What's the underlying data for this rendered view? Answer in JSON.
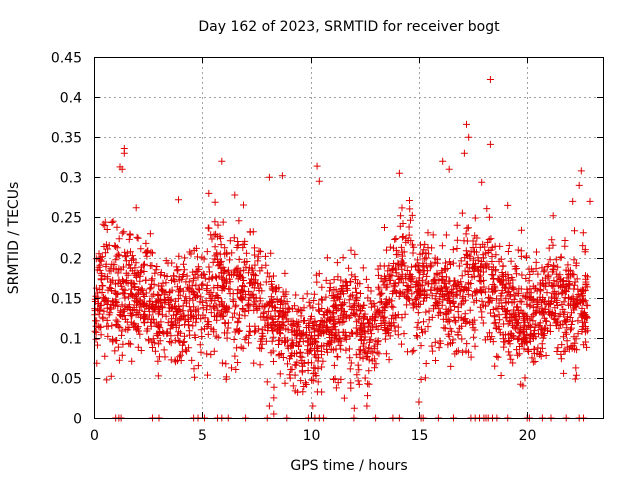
{
  "chart_data": {
    "type": "scatter",
    "title": "Day 162 of 2023, SRMTID for receiver bogt",
    "xlabel": "GPS time / hours",
    "ylabel": "SRMTID / TECUs",
    "xlim": [
      0,
      23.5
    ],
    "ylim": [
      0,
      0.45
    ],
    "x_ticks": [
      0,
      5,
      10,
      15,
      20
    ],
    "x_tick_labels": [
      "0",
      "5",
      "10",
      "15",
      "20"
    ],
    "y_ticks": [
      0,
      0.05,
      0.1,
      0.15,
      0.2,
      0.25,
      0.3,
      0.35,
      0.4,
      0.45
    ],
    "y_tick_labels": [
      "0",
      "0.05",
      "0.1",
      "0.15",
      "0.2",
      "0.25",
      "0.3",
      "0.35",
      "0.4",
      "0.45"
    ],
    "grid": true,
    "marker": "+",
    "color": "#e00000",
    "series": [
      {
        "name": "SRMTID",
        "envelope": {
          "x": [
            0,
            0.5,
            1.0,
            1.5,
            2.0,
            3.0,
            4.0,
            5.0,
            5.5,
            6.0,
            7.0,
            8.0,
            9.0,
            9.5,
            10.0,
            11.0,
            12.0,
            12.5,
            13.0,
            14.0,
            14.5,
            15.0,
            16.0,
            16.5,
            17.0,
            17.5,
            18.0,
            18.5,
            19.0,
            20.0,
            20.5,
            21.0,
            22.0,
            22.5,
            22.8
          ],
          "mean": [
            0.14,
            0.17,
            0.15,
            0.16,
            0.15,
            0.14,
            0.13,
            0.15,
            0.17,
            0.16,
            0.16,
            0.14,
            0.11,
            0.09,
            0.1,
            0.12,
            0.13,
            0.11,
            0.12,
            0.17,
            0.18,
            0.16,
            0.15,
            0.14,
            0.16,
            0.17,
            0.18,
            0.16,
            0.14,
            0.13,
            0.12,
            0.14,
            0.14,
            0.15,
            0.13
          ],
          "spread": [
            0.04,
            0.05,
            0.06,
            0.05,
            0.045,
            0.045,
            0.045,
            0.05,
            0.06,
            0.055,
            0.05,
            0.045,
            0.04,
            0.035,
            0.04,
            0.045,
            0.045,
            0.04,
            0.045,
            0.05,
            0.055,
            0.05,
            0.05,
            0.045,
            0.06,
            0.065,
            0.06,
            0.05,
            0.045,
            0.045,
            0.045,
            0.045,
            0.05,
            0.05,
            0.04
          ]
        },
        "num_points": 2600,
        "seed": 162,
        "outliers": [
          {
            "x": 18.3,
            "y": 0.422
          },
          {
            "x": 17.2,
            "y": 0.366
          },
          {
            "x": 18.3,
            "y": 0.341
          },
          {
            "x": 17.3,
            "y": 0.35
          },
          {
            "x": 17.1,
            "y": 0.33
          },
          {
            "x": 1.4,
            "y": 0.336
          },
          {
            "x": 1.4,
            "y": 0.33
          },
          {
            "x": 1.3,
            "y": 0.31
          },
          {
            "x": 1.2,
            "y": 0.313
          },
          {
            "x": 5.9,
            "y": 0.32
          },
          {
            "x": 10.3,
            "y": 0.314
          },
          {
            "x": 22.5,
            "y": 0.308
          },
          {
            "x": 22.4,
            "y": 0.29
          },
          {
            "x": 8.7,
            "y": 0.302
          },
          {
            "x": 8.1,
            "y": 0.3
          },
          {
            "x": 16.1,
            "y": 0.32
          },
          {
            "x": 16.4,
            "y": 0.31
          },
          {
            "x": 14.1,
            "y": 0.305
          },
          {
            "x": 10.4,
            "y": 0.295
          },
          {
            "x": 0.5,
            "y": 0.24
          },
          {
            "x": 3.9,
            "y": 0.272
          },
          {
            "x": 5.3,
            "y": 0.28
          },
          {
            "x": 6.5,
            "y": 0.278
          },
          {
            "x": 22.1,
            "y": 0.27
          },
          {
            "x": 22.9,
            "y": 0.27
          },
          {
            "x": 21.2,
            "y": 0.252
          },
          {
            "x": 19.1,
            "y": 0.265
          },
          {
            "x": 8.3,
            "y": 0.025
          },
          {
            "x": 8.1,
            "y": 0.015
          },
          {
            "x": 8.3,
            "y": 0.005
          },
          {
            "x": 10.1,
            "y": 0.015
          },
          {
            "x": 12.6,
            "y": 0.015
          },
          {
            "x": 15.0,
            "y": 0.02
          },
          {
            "x": 15.3,
            "y": 0.05
          },
          {
            "x": 15.1,
            "y": 0.048
          },
          {
            "x": 19.7,
            "y": 0.042
          },
          {
            "x": 19.9,
            "y": 0.05
          },
          {
            "x": 19.8,
            "y": 0.04
          },
          {
            "x": 9.2,
            "y": 0.04
          },
          {
            "x": 9.4,
            "y": 0.032
          },
          {
            "x": 8.6,
            "y": 0.055
          },
          {
            "x": 12.7,
            "y": 0.042
          },
          {
            "x": 8.0,
            "y": 0.045
          },
          {
            "x": 0.5,
            "y": 0.077
          },
          {
            "x": 0.8,
            "y": 0.052
          },
          {
            "x": 13.5,
            "y": 0.08
          },
          {
            "x": 10.4,
            "y": 0.18
          },
          {
            "x": 11.5,
            "y": 0.2
          }
        ],
        "zero_x": [
          1.0,
          1.15,
          1.25,
          2.7,
          3.0,
          4.6,
          4.8,
          5.1,
          5.7,
          5.9,
          6.2,
          7.0,
          8.0,
          8.9,
          9.9,
          10.2,
          10.4,
          10.6,
          12.0,
          13.0,
          13.8,
          14.1,
          15.1,
          15.2,
          15.9,
          16.6,
          17.4,
          17.6,
          17.8,
          18.0,
          18.1,
          18.2,
          18.4,
          18.6,
          19.1,
          20.0,
          20.1,
          20.7,
          21.1,
          21.8,
          22.4,
          22.6
        ]
      }
    ]
  }
}
